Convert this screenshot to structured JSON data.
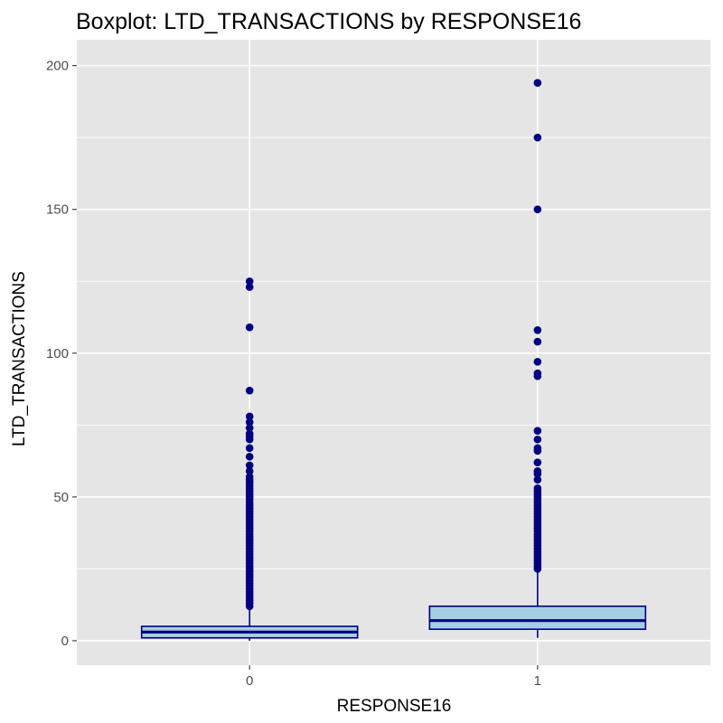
{
  "chart_data": {
    "type": "boxplot",
    "title": "Boxplot: LTD_TRANSACTIONS by RESPONSE16",
    "xlabel": "RESPONSE16",
    "ylabel": "LTD_TRANSACTIONS",
    "ylim": [
      -8.5,
      209
    ],
    "y_ticks": [
      0,
      50,
      100,
      150,
      200
    ],
    "y_tick_labels": [
      "0",
      "50",
      "100",
      "150",
      "200"
    ],
    "grid": true,
    "colors": {
      "panel_background": "#e5e5e5",
      "grid": "#ffffff",
      "box_fill": "#a6cee3",
      "box_outline": "#000080",
      "outlier": "#000080",
      "text": "#000000",
      "tick_text": "#4d4d4d"
    },
    "categories": [
      "0",
      "1"
    ],
    "boxes": [
      {
        "category": "0",
        "lower_whisker": 0,
        "q1": 1,
        "median": 3,
        "q3": 5,
        "upper_whisker": 11,
        "outliers": [
          12,
          13,
          14,
          15,
          16,
          17,
          18,
          19,
          20,
          21,
          22,
          23,
          24,
          25,
          26,
          27,
          28,
          29,
          30,
          31,
          32,
          33,
          34,
          35,
          36,
          37,
          38,
          39,
          40,
          41,
          42,
          43,
          44,
          45,
          46,
          47,
          48,
          49,
          50,
          51,
          52,
          53,
          54,
          55,
          56,
          57,
          59,
          61,
          64,
          67,
          70,
          71,
          72,
          74,
          76,
          78,
          87,
          109,
          123,
          125
        ]
      },
      {
        "category": "1",
        "lower_whisker": 1,
        "q1": 4,
        "median": 7,
        "q3": 12,
        "upper_whisker": 24,
        "outliers": [
          25,
          26,
          27,
          28,
          29,
          30,
          31,
          32,
          33,
          34,
          35,
          36,
          37,
          38,
          39,
          40,
          41,
          42,
          43,
          44,
          45,
          46,
          47,
          48,
          49,
          50,
          51,
          52,
          53,
          56,
          58,
          59,
          62,
          66,
          67,
          70,
          73,
          92,
          93,
          97,
          104,
          108,
          150,
          175,
          194
        ]
      }
    ]
  }
}
